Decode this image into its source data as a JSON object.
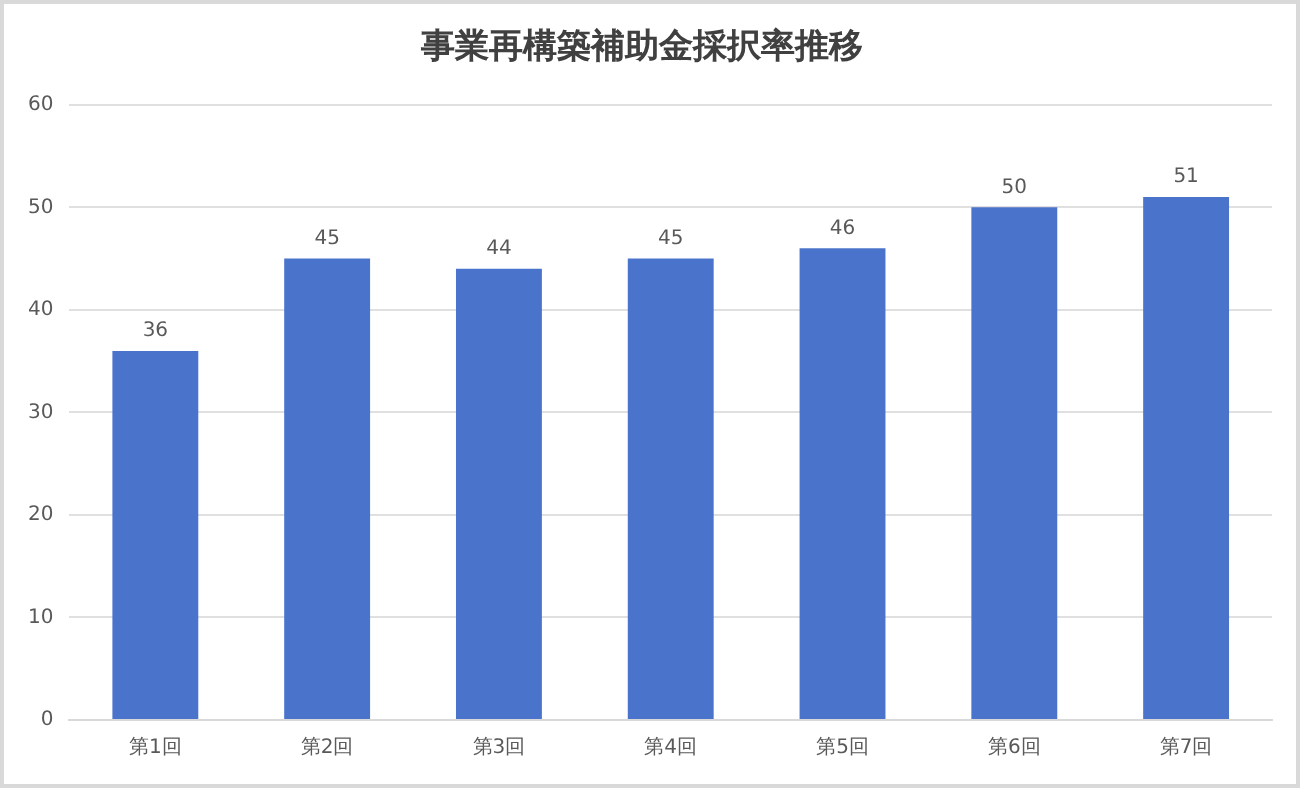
{
  "chart_data": {
    "type": "bar",
    "title": "事業再構築補助金採択率推移",
    "categories": [
      "第1回",
      "第2回",
      "第3回",
      "第4回",
      "第5回",
      "第6回",
      "第7回"
    ],
    "values": [
      36,
      45,
      44,
      45,
      46,
      50,
      51
    ],
    "color": "#4a74cc",
    "ylim": [
      0,
      60
    ],
    "yticks": [
      0,
      10,
      20,
      30,
      40,
      50,
      60
    ],
    "grid": "y",
    "data_labels": true
  }
}
